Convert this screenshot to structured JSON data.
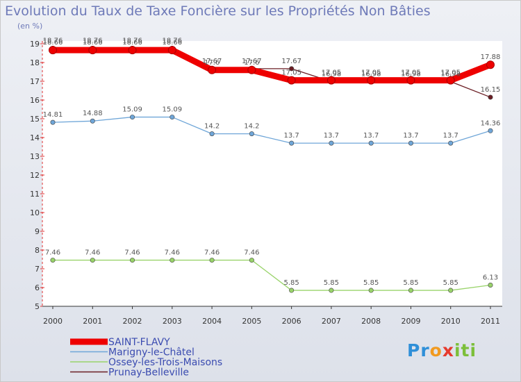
{
  "title": "Evolution du Taux de Taxe Foncière sur les Propriétés Non Bâties",
  "unit_label": "(en %)",
  "logo_text": "Proxiti",
  "chart_data": {
    "type": "line",
    "title": "Evolution du Taux de Taxe Foncière sur les Propriétés Non Bâties",
    "ylabel": "(en %)",
    "xlabel": "",
    "ylim": [
      5,
      19
    ],
    "yticks": [
      5,
      6,
      7,
      8,
      9,
      10,
      11,
      12,
      13,
      14,
      15,
      16,
      17,
      18,
      19
    ],
    "categories": [
      "2000",
      "2001",
      "2002",
      "2003",
      "2004",
      "2005",
      "2006",
      "2007",
      "2008",
      "2009",
      "2010",
      "2011"
    ],
    "grid": false,
    "legend_position": "bottom-left",
    "series": [
      {
        "name": "Prunay-Belleville",
        "color": "#6b1e24",
        "values": [
          18.76,
          18.76,
          18.76,
          18.76,
          17.67,
          17.67,
          17.67,
          16.98,
          16.98,
          16.98,
          16.98,
          16.15
        ],
        "labels": [
          "18.76",
          "18.76",
          "18.76",
          "18.76",
          "17.67",
          "17.67",
          "17.67",
          "16.98",
          "16.98",
          "16.98",
          "16.98",
          "16.15"
        ]
      },
      {
        "name": "Ossey-les-Trois-Maisons",
        "color": "#99d36a",
        "values": [
          7.46,
          7.46,
          7.46,
          7.46,
          7.46,
          7.46,
          5.85,
          5.85,
          5.85,
          5.85,
          5.85,
          6.13
        ],
        "labels": [
          "7.46",
          "7.46",
          "7.46",
          "7.46",
          "7.46",
          "7.46",
          "5.85",
          "5.85",
          "5.85",
          "5.85",
          "5.85",
          "6.13"
        ]
      },
      {
        "name": "Marigny-le-Châtel",
        "color": "#6fa6d8",
        "values": [
          14.81,
          14.88,
          15.09,
          15.09,
          14.2,
          14.2,
          13.7,
          13.7,
          13.7,
          13.7,
          13.7,
          14.36
        ],
        "labels": [
          "14.81",
          "14.88",
          "15.09",
          "15.09",
          "14.2",
          "14.2",
          "13.7",
          "13.7",
          "13.7",
          "13.7",
          "13.7",
          "14.36"
        ]
      },
      {
        "name": "SAINT-FLAVY",
        "color": "#ee0000",
        "values": [
          18.66,
          18.66,
          18.66,
          18.66,
          17.6,
          17.6,
          17.05,
          17.05,
          17.05,
          17.05,
          17.05,
          17.88
        ],
        "labels": [
          "18.66",
          "18.66",
          "18.66",
          "18.66",
          "17.6",
          "17.6",
          "17.05",
          "17.05",
          "17.05",
          "17.05",
          "17.05",
          "17.88"
        ]
      }
    ],
    "legend": [
      "SAINT-FLAVY",
      "Marigny-le-Châtel",
      "Ossey-les-Trois-Maisons",
      "Prunay-Belleville"
    ]
  }
}
